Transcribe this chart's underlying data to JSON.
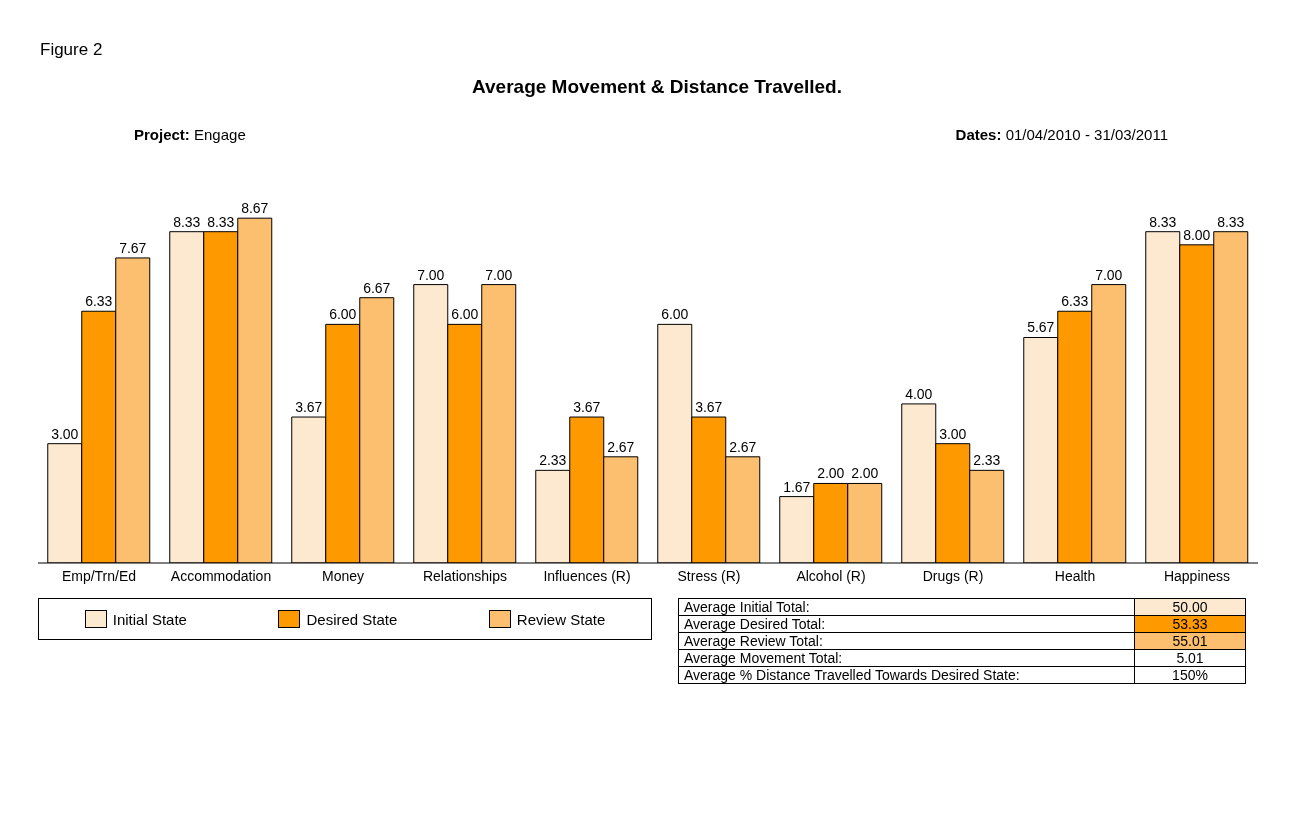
{
  "chart_data": {
    "type": "bar",
    "title": "Average Movement & Distance Travelled.",
    "subtitle": "Project: Engage",
    "categories": [
      "Emp/Trn/Ed",
      "Accommodation",
      "Money",
      "Relationships",
      "Influences (R)",
      "Stress (R)",
      "Alcohol (R)",
      "Drugs (R)",
      "Health",
      "Happiness"
    ],
    "series": [
      {
        "name": "Initial State",
        "color": "#fde9d0",
        "values": [
          3.0,
          8.33,
          3.67,
          7.0,
          2.33,
          6.0,
          1.67,
          4.0,
          5.67,
          8.33
        ],
        "value_labels": [
          "3.00",
          "8.33",
          "3.67",
          "7.00",
          "2.33",
          "6.00",
          "1.67",
          "4.00",
          "5.67",
          "8.33"
        ]
      },
      {
        "name": "Desired State",
        "color": "#ff9900",
        "values": [
          6.33,
          8.33,
          6.0,
          6.0,
          3.67,
          3.67,
          2.0,
          3.0,
          6.33,
          8.0
        ],
        "value_labels": [
          "6.33",
          "8.33",
          "6.00",
          "6.00",
          "3.67",
          "3.67",
          "2.00",
          "3.00",
          "6.33",
          "8.00"
        ]
      },
      {
        "name": "Review State",
        "color": "#fbbf6f",
        "values": [
          7.67,
          8.67,
          6.67,
          7.0,
          2.67,
          2.67,
          2.0,
          2.33,
          7.0,
          8.33
        ],
        "value_labels": [
          "7.67",
          "8.67",
          "6.67",
          "7.00",
          "2.67",
          "2.67",
          "2.00",
          "2.33",
          "7.00",
          "8.33"
        ]
      }
    ],
    "legend": "bottom",
    "annotations": [
      "Figure 2",
      "Dates: 01/04/2010 - 31/03/2011",
      "Average Initial Total:",
      "50.00",
      "Average Desired Total:",
      "53.33",
      "Average Review Total:",
      "55.01",
      "Average Movement Total:",
      "5.01",
      "Average % Distance Travelled Towards Desired State:",
      "150%"
    ]
  }
}
